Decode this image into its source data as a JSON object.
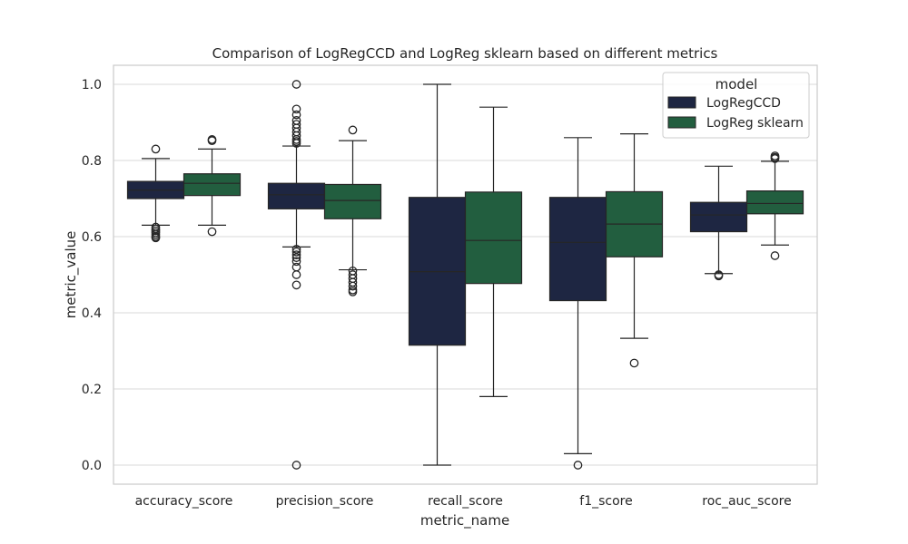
{
  "chart_data": {
    "type": "box",
    "title": "Comparison of LogRegCCD and LogReg sklearn based on different metrics",
    "xlabel": "metric_name",
    "ylabel": "metric_value",
    "ylim": [
      -0.05,
      1.05
    ],
    "yticks": [
      "0.0",
      "0.2",
      "0.4",
      "0.6",
      "0.8",
      "1.0"
    ],
    "grid": true,
    "legend": {
      "title": "model",
      "position": "top-right"
    },
    "categories": [
      "accuracy_score",
      "precision_score",
      "recall_score",
      "f1_score",
      "roc_auc_score"
    ],
    "series": [
      {
        "name": "LogRegCCD",
        "color": "#1e2642",
        "boxes": [
          {
            "whisker_low": 0.63,
            "q1": 0.7,
            "median": 0.722,
            "q3": 0.745,
            "whisker_high": 0.805,
            "outliers": [
              0.83,
              0.625,
              0.62,
              0.615,
              0.61,
              0.605,
              0.6,
              0.597
            ]
          },
          {
            "whisker_low": 0.573,
            "q1": 0.673,
            "median": 0.71,
            "q3": 0.74,
            "whisker_high": 0.838,
            "outliers": [
              1.0,
              0.935,
              0.92,
              0.905,
              0.895,
              0.885,
              0.875,
              0.865,
              0.855,
              0.85,
              0.845,
              0.567,
              0.56,
              0.552,
              0.545,
              0.535,
              0.52,
              0.5,
              0.473,
              0.0
            ]
          },
          {
            "whisker_low": 0.0,
            "q1": 0.315,
            "median": 0.508,
            "q3": 0.703,
            "whisker_high": 1.0,
            "outliers": []
          },
          {
            "whisker_low": 0.03,
            "q1": 0.432,
            "median": 0.585,
            "q3": 0.703,
            "whisker_high": 0.86,
            "outliers": [
              0.0
            ]
          },
          {
            "whisker_low": 0.503,
            "q1": 0.613,
            "median": 0.657,
            "q3": 0.69,
            "whisker_high": 0.785,
            "outliers": [
              0.5,
              0.497
            ]
          }
        ]
      },
      {
        "name": "LogReg sklearn",
        "color": "#225e3f",
        "boxes": [
          {
            "whisker_low": 0.63,
            "q1": 0.708,
            "median": 0.74,
            "q3": 0.765,
            "whisker_high": 0.83,
            "outliers": [
              0.855,
              0.852,
              0.613
            ]
          },
          {
            "whisker_low": 0.513,
            "q1": 0.647,
            "median": 0.695,
            "q3": 0.737,
            "whisker_high": 0.852,
            "outliers": [
              0.88,
              0.51,
              0.5,
              0.49,
              0.48,
              0.47,
              0.46,
              0.455
            ]
          },
          {
            "whisker_low": 0.18,
            "q1": 0.477,
            "median": 0.59,
            "q3": 0.717,
            "whisker_high": 0.94,
            "outliers": []
          },
          {
            "whisker_low": 0.333,
            "q1": 0.547,
            "median": 0.633,
            "q3": 0.718,
            "whisker_high": 0.87,
            "outliers": [
              0.268
            ]
          },
          {
            "whisker_low": 0.578,
            "q1": 0.66,
            "median": 0.687,
            "q3": 0.72,
            "whisker_high": 0.798,
            "outliers": [
              0.812,
              0.808,
              0.805,
              0.55
            ]
          }
        ]
      }
    ]
  }
}
